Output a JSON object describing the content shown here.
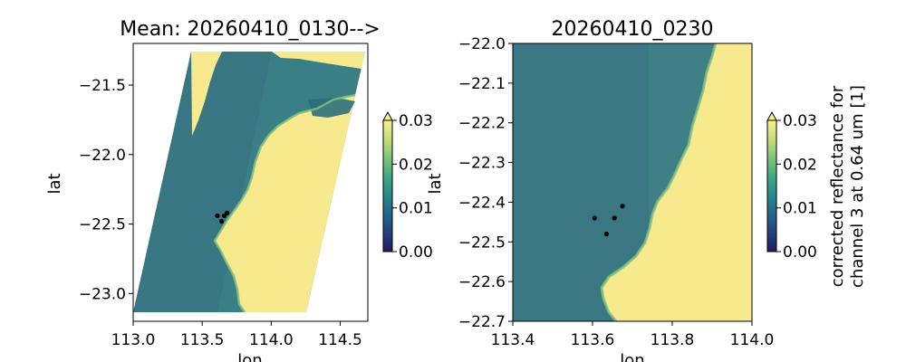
{
  "chart_data": [
    {
      "type": "heatmap",
      "title": "Mean: 20260410_0130-->",
      "xlabel": "lon",
      "ylabel": "lat",
      "xlim": [
        113.0,
        114.7
      ],
      "ylim": [
        -23.2,
        -21.2
      ],
      "x_ticks": [
        113.0,
        113.5,
        114.0,
        114.5
      ],
      "x_tick_labels": [
        "113.0",
        "113.5",
        "114.0",
        "114.5"
      ],
      "y_ticks": [
        -21.5,
        -22.0,
        -22.5,
        -23.0
      ],
      "y_tick_labels": [
        "−21.5",
        "−22.0",
        "−22.5",
        "−23.0"
      ],
      "swath_corners": [
        [
          113.42,
          -21.27
        ],
        [
          114.68,
          -21.27
        ],
        [
          114.24,
          -23.15
        ],
        [
          113.0,
          -23.15
        ]
      ],
      "points": [
        {
          "x": 113.61,
          "y": -22.44
        },
        {
          "x": 113.66,
          "y": -22.44
        },
        {
          "x": 113.68,
          "y": -22.42
        },
        {
          "x": 113.64,
          "y": -22.48
        }
      ],
      "colorbar": {
        "range": [
          0.0,
          0.03
        ],
        "ticks": [
          0.0,
          0.01,
          0.02,
          0.03
        ],
        "tick_labels": [
          "0.00",
          "0.01",
          "0.02",
          "0.03"
        ],
        "extend": "max",
        "label": ""
      }
    },
    {
      "type": "heatmap",
      "title": "20260410_0230",
      "xlabel": "lon",
      "ylabel": "lat",
      "xlim": [
        113.4,
        114.0
      ],
      "ylim": [
        -22.7,
        -22.0
      ],
      "x_ticks": [
        113.4,
        113.6,
        113.8,
        114.0
      ],
      "x_tick_labels": [
        "113.4",
        "113.6",
        "113.8",
        "114.0"
      ],
      "y_ticks": [
        -22.0,
        -22.1,
        -22.2,
        -22.3,
        -22.4,
        -22.5,
        -22.6,
        -22.7
      ],
      "y_tick_labels": [
        "−22.0",
        "−22.1",
        "−22.2",
        "−22.3",
        "−22.4",
        "−22.5",
        "−22.6",
        "−22.7"
      ],
      "points": [
        {
          "x": 113.605,
          "y": -22.44
        },
        {
          "x": 113.655,
          "y": -22.44
        },
        {
          "x": 113.675,
          "y": -22.41
        },
        {
          "x": 113.635,
          "y": -22.48
        }
      ],
      "colorbar": {
        "range": [
          0.0,
          0.03
        ],
        "ticks": [
          0.0,
          0.01,
          0.02,
          0.03
        ],
        "tick_labels": [
          "0.00",
          "0.01",
          "0.02",
          "0.03"
        ],
        "extend": "max",
        "label": "corrected reflectance for\nchannel 3 at 0.64 um [1]"
      }
    }
  ],
  "colors": {
    "land": "#f7e98e",
    "sea_dark": "#2f6e7e",
    "sea_mid": "#3f8587",
    "sea_light": "#4d9a8e",
    "points": "#000000"
  },
  "colormap": [
    "#f7ee8e",
    "#c8df7a",
    "#7fc47a",
    "#3fa686",
    "#2a8a8a",
    "#23678a",
    "#243f83",
    "#241a66"
  ]
}
